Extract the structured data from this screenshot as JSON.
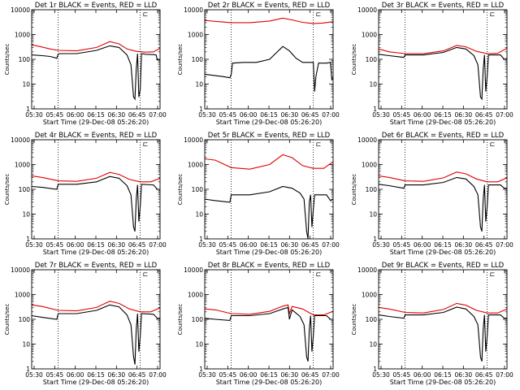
{
  "figure": {
    "colors": {
      "events": "#000000",
      "lld": "#e00000",
      "axes": "#000000",
      "background": "#ffffff"
    },
    "corner_glyph": "⊏"
  },
  "chart_data": [
    {
      "type": "line",
      "title": "Det 1r  BLACK = Events, RED = LLD",
      "xlabel": "Start Time (29-Dec-08 05:26:20)",
      "ylabel": "Counts/sec",
      "x_ticks": [
        "05:30",
        "05:45",
        "06:00",
        "06:15",
        "06:30",
        "06:45",
        "07:00"
      ],
      "y_ticks": [
        "1",
        "10",
        "100",
        "1000",
        "10000"
      ],
      "y_scale": "log",
      "ylim": [
        1,
        10000
      ],
      "xlim_minutes": [
        326,
        423
      ],
      "vlines_minutes": [
        346,
        408
      ],
      "series": [
        {
          "name": "LLD",
          "color": "#e00000",
          "x": [
            326,
            332,
            340,
            346,
            360,
            375,
            385,
            392,
            398,
            405,
            412,
            418,
            423
          ],
          "values": [
            380,
            330,
            260,
            230,
            220,
            300,
            520,
            420,
            260,
            210,
            195,
            200,
            280
          ]
        },
        {
          "name": "Events",
          "color": "#000000",
          "x": [
            326,
            334,
            340,
            345,
            346,
            347,
            360,
            375,
            385,
            392,
            398,
            401,
            403,
            404,
            405,
            406,
            407,
            408,
            409,
            412,
            418,
            420,
            421,
            423
          ],
          "values": [
            150,
            140,
            130,
            110,
            160,
            170,
            170,
            230,
            350,
            300,
            150,
            60,
            3,
            2.5,
            40,
            170,
            3,
            6,
            170,
            160,
            155,
            150,
            95,
            100
          ]
        }
      ]
    },
    {
      "type": "line",
      "title": "Det 2r  BLACK = Events, RED = LLD",
      "xlabel": "Start Time (29-Dec-08 05:26:20)",
      "ylabel": "Counts/sec",
      "x_ticks": [
        "05:30",
        "05:45",
        "06:00",
        "06:15",
        "06:30",
        "06:45",
        "07:00"
      ],
      "y_ticks": [
        "1",
        "10",
        "100",
        "1000",
        "10000"
      ],
      "y_scale": "log",
      "ylim": [
        1,
        10000
      ],
      "xlim_minutes": [
        326,
        423
      ],
      "vlines_minutes": [
        346,
        408
      ],
      "series": [
        {
          "name": "LLD",
          "color": "#e00000",
          "x": [
            326,
            334,
            346,
            360,
            375,
            385,
            392,
            400,
            408,
            415,
            423
          ],
          "values": [
            3700,
            3400,
            3000,
            3000,
            3500,
            4600,
            3900,
            3100,
            2800,
            2900,
            3300
          ]
        },
        {
          "name": "Events",
          "color": "#000000",
          "x": [
            326,
            334,
            340,
            345,
            346,
            347,
            355,
            365,
            375,
            385,
            390,
            395,
            400,
            408,
            409,
            410,
            412,
            418,
            421,
            422,
            423
          ],
          "values": [
            25,
            22,
            20,
            18,
            25,
            70,
            75,
            75,
            100,
            330,
            220,
            110,
            75,
            75,
            5,
            20,
            70,
            70,
            75,
            15,
            18
          ]
        }
      ]
    },
    {
      "type": "line",
      "title": "Det 3r  BLACK = Events, RED = LLD",
      "xlabel": "Start Time (29-Dec-08 05:26:20)",
      "ylabel": "Counts/sec",
      "x_ticks": [
        "05:30",
        "05:45",
        "06:00",
        "06:15",
        "06:30",
        "06:45",
        "07:00"
      ],
      "y_ticks": [
        "1",
        "10",
        "100",
        "1000",
        "10000"
      ],
      "y_scale": "log",
      "ylim": [
        1,
        10000
      ],
      "xlim_minutes": [
        326,
        423
      ],
      "vlines_minutes": [
        346,
        408
      ],
      "series": [
        {
          "name": "LLD",
          "color": "#e00000",
          "x": [
            326,
            334,
            346,
            360,
            375,
            385,
            392,
            400,
            408,
            416,
            423
          ],
          "values": [
            260,
            200,
            170,
            170,
            220,
            360,
            320,
            210,
            170,
            175,
            280
          ]
        },
        {
          "name": "Events",
          "color": "#000000",
          "x": [
            326,
            334,
            345,
            346,
            347,
            360,
            375,
            385,
            392,
            398,
            401,
            403,
            404,
            405,
            406,
            407,
            408,
            409,
            418,
            421,
            423
          ],
          "values": [
            160,
            140,
            120,
            150,
            150,
            150,
            190,
            300,
            260,
            140,
            60,
            3,
            2.5,
            40,
            150,
            5,
            20,
            150,
            150,
            100,
            110
          ]
        }
      ]
    },
    {
      "type": "line",
      "title": "Det 4r  BLACK = Events, RED = LLD",
      "xlabel": "Start Time (29-Dec-08 05:26:20)",
      "ylabel": "Counts/sec",
      "x_ticks": [
        "05:30",
        "05:45",
        "06:00",
        "06:15",
        "06:30",
        "06:45",
        "07:00"
      ],
      "y_ticks": [
        "1",
        "10",
        "100",
        "1000",
        "10000"
      ],
      "y_scale": "log",
      "ylim": [
        1,
        10000
      ],
      "xlim_minutes": [
        326,
        423
      ],
      "vlines_minutes": [
        346,
        408
      ],
      "series": [
        {
          "name": "LLD",
          "color": "#e00000",
          "x": [
            326,
            334,
            346,
            360,
            375,
            385,
            392,
            400,
            408,
            416,
            423
          ],
          "values": [
            350,
            300,
            220,
            210,
            280,
            480,
            400,
            250,
            200,
            200,
            280
          ]
        },
        {
          "name": "Events",
          "color": "#000000",
          "x": [
            326,
            334,
            345,
            346,
            347,
            360,
            375,
            385,
            392,
            398,
            401,
            403,
            404,
            405,
            406,
            407,
            408,
            409,
            418,
            421,
            423
          ],
          "values": [
            130,
            120,
            100,
            160,
            160,
            160,
            200,
            330,
            280,
            140,
            60,
            3,
            2,
            40,
            150,
            5,
            20,
            160,
            150,
            100,
            100
          ]
        }
      ]
    },
    {
      "type": "line",
      "title": "Det 5r  BLACK = Events, RED = LLD",
      "xlabel": "Start Time (29-Dec-08 05:26:20)",
      "ylabel": "Counts/sec",
      "x_ticks": [
        "05:30",
        "05:45",
        "06:00",
        "06:15",
        "06:30",
        "06:45",
        "07:00"
      ],
      "y_ticks": [
        "1",
        "10",
        "100",
        "1000",
        "10000"
      ],
      "y_scale": "log",
      "ylim": [
        1,
        10000
      ],
      "xlim_minutes": [
        326,
        423
      ],
      "vlines_minutes": [
        346,
        408
      ],
      "series": [
        {
          "name": "LLD",
          "color": "#e00000",
          "x": [
            326,
            334,
            346,
            360,
            375,
            385,
            392,
            400,
            408,
            416,
            423
          ],
          "values": [
            1700,
            1500,
            750,
            650,
            1000,
            2500,
            1900,
            900,
            700,
            700,
            1300
          ]
        },
        {
          "name": "Events",
          "color": "#000000",
          "x": [
            326,
            334,
            345,
            346,
            347,
            360,
            375,
            385,
            392,
            398,
            401,
            403,
            404,
            405,
            406,
            407,
            408,
            409,
            418,
            421,
            423
          ],
          "values": [
            40,
            35,
            30,
            60,
            60,
            60,
            80,
            130,
            110,
            70,
            40,
            2,
            1,
            30,
            60,
            3,
            15,
            60,
            60,
            35,
            40
          ]
        }
      ]
    },
    {
      "type": "line",
      "title": "Det 6r  BLACK = Events, RED = LLD",
      "xlabel": "Start Time (29-Dec-08 05:26:20)",
      "ylabel": "Counts/sec",
      "x_ticks": [
        "05:30",
        "05:45",
        "06:00",
        "06:15",
        "06:30",
        "06:45",
        "07:00"
      ],
      "y_ticks": [
        "1",
        "10",
        "100",
        "1000",
        "10000"
      ],
      "y_scale": "log",
      "ylim": [
        1,
        10000
      ],
      "xlim_minutes": [
        326,
        423
      ],
      "vlines_minutes": [
        346,
        408
      ],
      "series": [
        {
          "name": "LLD",
          "color": "#e00000",
          "x": [
            326,
            334,
            346,
            360,
            375,
            385,
            392,
            400,
            408,
            416,
            423
          ],
          "values": [
            350,
            300,
            220,
            210,
            290,
            500,
            420,
            260,
            200,
            200,
            290
          ]
        },
        {
          "name": "Events",
          "color": "#000000",
          "x": [
            326,
            334,
            345,
            346,
            347,
            360,
            375,
            385,
            392,
            398,
            401,
            403,
            404,
            405,
            406,
            407,
            408,
            409,
            418,
            421,
            423
          ],
          "values": [
            160,
            140,
            110,
            150,
            150,
            150,
            190,
            300,
            260,
            130,
            60,
            3,
            2,
            40,
            150,
            5,
            20,
            150,
            150,
            110,
            110
          ]
        }
      ]
    },
    {
      "type": "line",
      "title": "Det 7r  BLACK = Events, RED = LLD",
      "xlabel": "Start Time (29-Dec-08 05:26:20)",
      "ylabel": "Counts/sec",
      "x_ticks": [
        "05:30",
        "05:45",
        "06:00",
        "06:15",
        "06:30",
        "06:45",
        "07:00"
      ],
      "y_ticks": [
        "1",
        "10",
        "100",
        "1000",
        "10000"
      ],
      "y_scale": "log",
      "ylim": [
        1,
        10000
      ],
      "xlim_minutes": [
        326,
        423
      ],
      "vlines_minutes": [
        346,
        408
      ],
      "series": [
        {
          "name": "LLD",
          "color": "#e00000",
          "x": [
            326,
            334,
            346,
            360,
            375,
            385,
            392,
            400,
            408,
            416,
            423
          ],
          "values": [
            380,
            330,
            230,
            220,
            300,
            540,
            440,
            260,
            200,
            200,
            290
          ]
        },
        {
          "name": "Events",
          "color": "#000000",
          "x": [
            326,
            334,
            345,
            346,
            347,
            360,
            375,
            385,
            392,
            398,
            401,
            403,
            404,
            405,
            406,
            407,
            408,
            409,
            418,
            421,
            423
          ],
          "values": [
            140,
            120,
            100,
            170,
            170,
            170,
            230,
            380,
            320,
            150,
            60,
            3,
            1.5,
            40,
            170,
            5,
            20,
            170,
            160,
            110,
            110
          ]
        }
      ]
    },
    {
      "type": "line",
      "title": "Det 8r  BLACK = Events, RED = LLD",
      "xlabel": "Start Time (29-Dec-08 05:26:20)",
      "ylabel": "Counts/sec",
      "x_ticks": [
        "05:30",
        "05:45",
        "06:00",
        "06:15",
        "06:30",
        "06:45",
        "07:00"
      ],
      "y_ticks": [
        "1",
        "10",
        "100",
        "1000",
        "10000"
      ],
      "y_scale": "log",
      "ylim": [
        1,
        10000
      ],
      "xlim_minutes": [
        326,
        423
      ],
      "vlines_minutes": [
        346,
        408
      ],
      "series": [
        {
          "name": "LLD",
          "color": "#e00000",
          "x": [
            326,
            334,
            346,
            360,
            375,
            385,
            389,
            390,
            392,
            400,
            408,
            416,
            423
          ],
          "values": [
            260,
            240,
            170,
            160,
            210,
            340,
            380,
            170,
            330,
            260,
            150,
            150,
            210
          ]
        },
        {
          "name": "Events",
          "color": "#000000",
          "x": [
            326,
            334,
            345,
            346,
            347,
            360,
            375,
            385,
            389,
            390,
            392,
            398,
            401,
            403,
            404,
            405,
            406,
            407,
            408,
            409,
            418,
            421,
            423
          ],
          "values": [
            110,
            100,
            90,
            140,
            140,
            140,
            170,
            260,
            300,
            100,
            240,
            130,
            60,
            3,
            2,
            40,
            140,
            5,
            20,
            140,
            140,
            100,
            100
          ]
        }
      ]
    },
    {
      "type": "line",
      "title": "Det 9r  BLACK = Events, RED = LLD",
      "xlabel": "Start Time (29-Dec-08 05:26:20)",
      "ylabel": "Counts/sec",
      "x_ticks": [
        "05:30",
        "05:45",
        "06:00",
        "06:15",
        "06:30",
        "06:45",
        "07:00"
      ],
      "y_ticks": [
        "1",
        "10",
        "100",
        "1000",
        "10000"
      ],
      "y_scale": "log",
      "ylim": [
        1,
        10000
      ],
      "xlim_minutes": [
        326,
        423
      ],
      "vlines_minutes": [
        346,
        408
      ],
      "series": [
        {
          "name": "LLD",
          "color": "#e00000",
          "x": [
            326,
            334,
            346,
            360,
            375,
            385,
            392,
            400,
            408,
            416,
            423
          ],
          "values": [
            300,
            260,
            190,
            180,
            250,
            440,
            370,
            230,
            180,
            180,
            260
          ]
        },
        {
          "name": "Events",
          "color": "#000000",
          "x": [
            326,
            334,
            345,
            346,
            347,
            360,
            375,
            385,
            392,
            398,
            401,
            403,
            404,
            405,
            406,
            407,
            408,
            409,
            418,
            421,
            423
          ],
          "values": [
            150,
            130,
            110,
            150,
            150,
            150,
            190,
            310,
            260,
            130,
            60,
            3,
            2,
            40,
            150,
            5,
            20,
            150,
            150,
            110,
            110
          ]
        }
      ]
    }
  ]
}
